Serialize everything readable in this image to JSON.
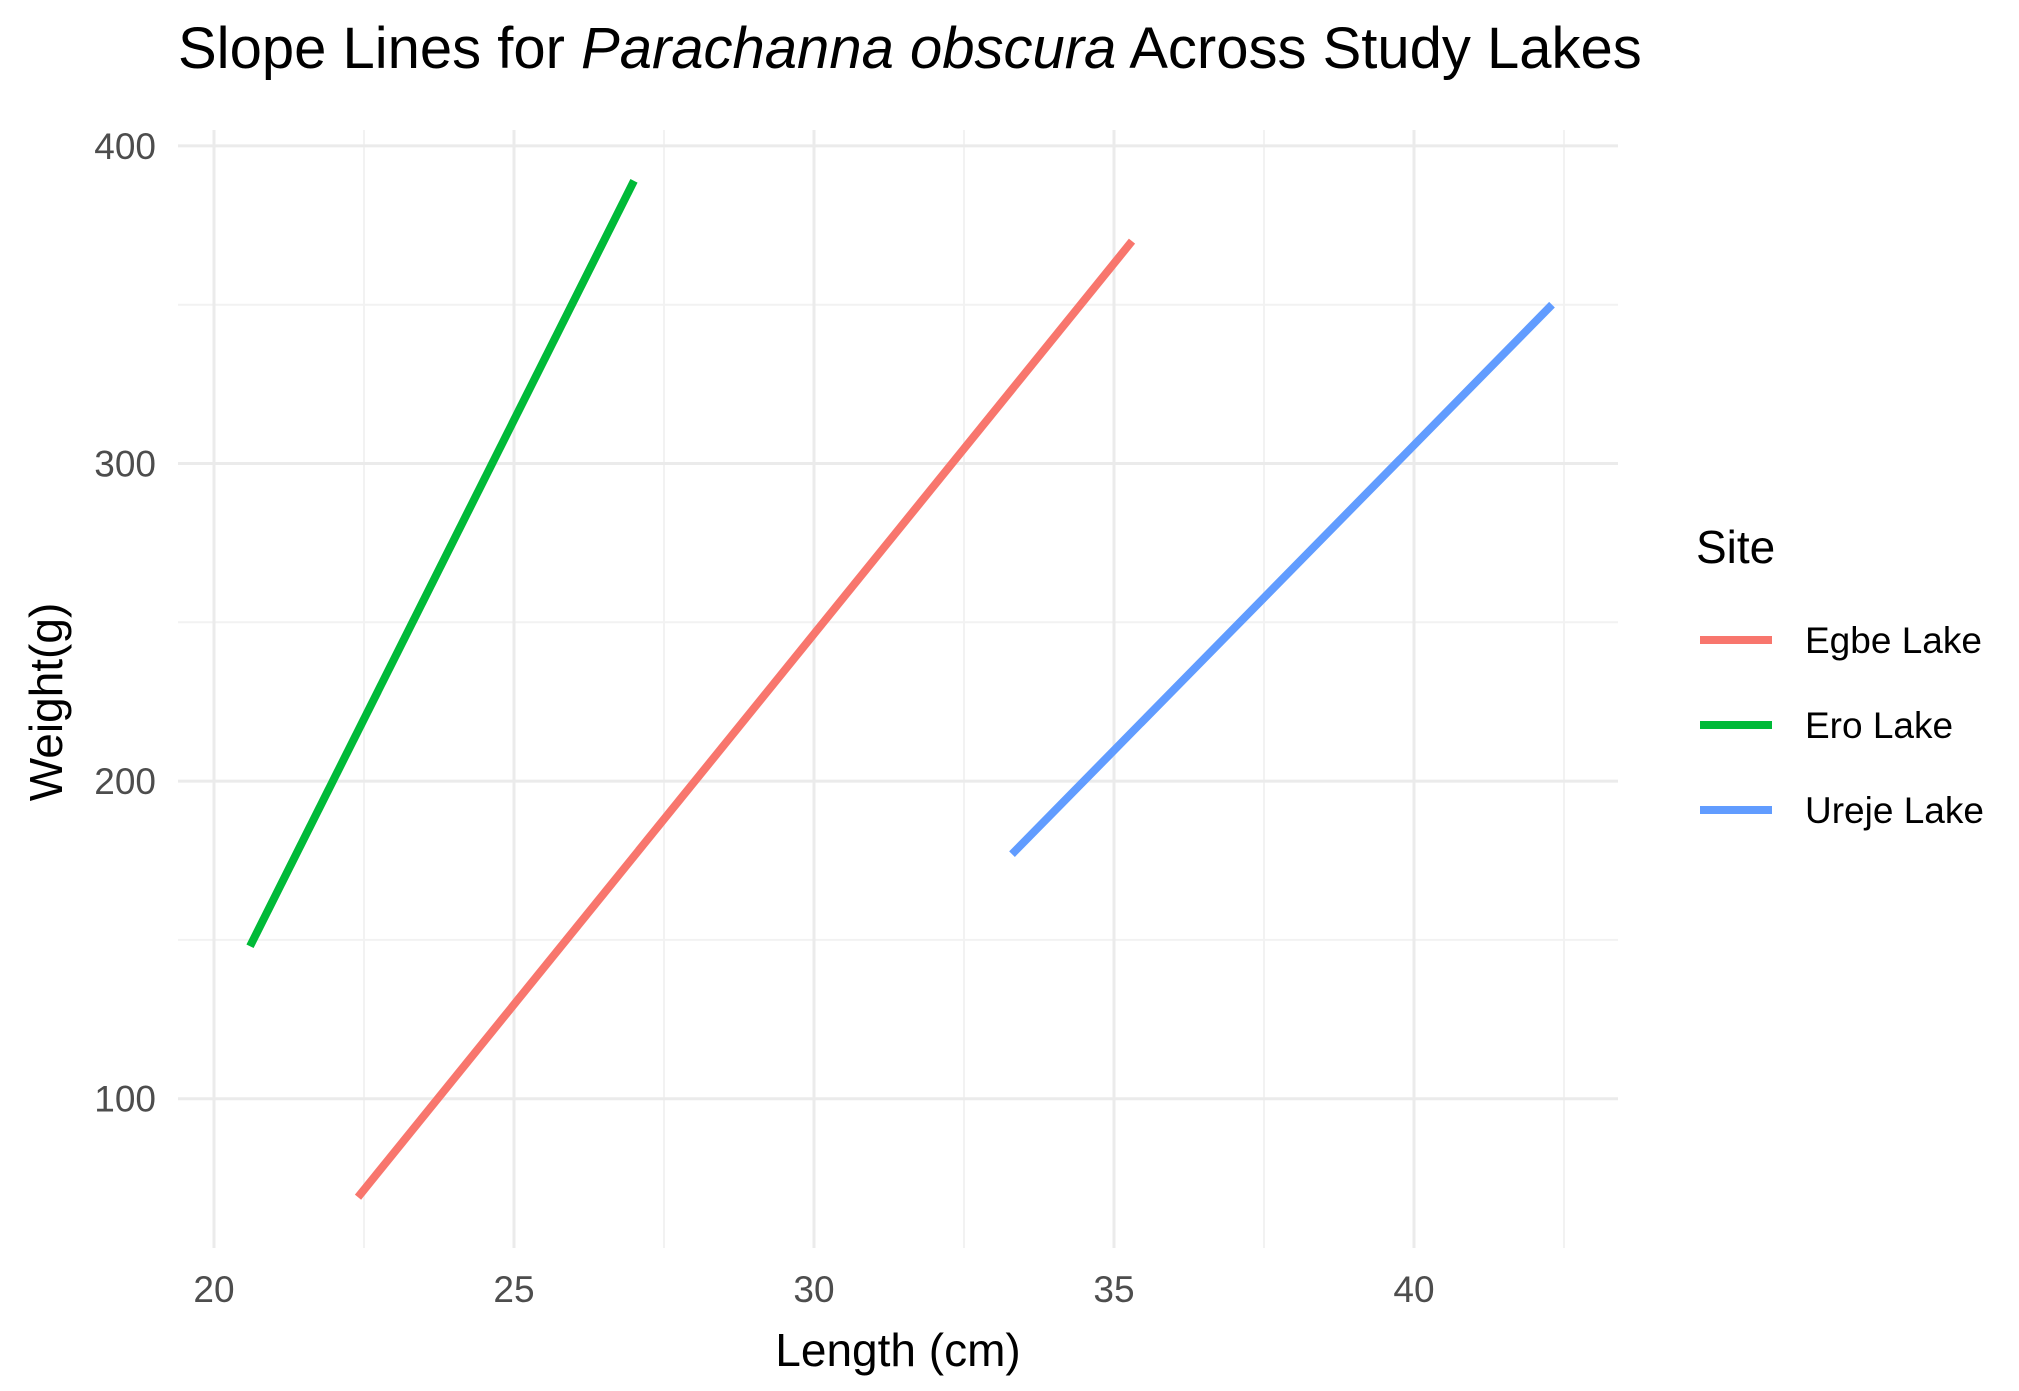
{
  "chart_data": {
    "type": "line",
    "title": {
      "prefix": "Slope Lines for ",
      "italic": "Parachanna obscura",
      "suffix": " Across Study Lakes"
    },
    "xlabel": "Length (cm)",
    "ylabel": "Weight(g)",
    "xlim": [
      19.4,
      43.4
    ],
    "ylim": [
      53,
      405
    ],
    "x_ticks": [
      20,
      25,
      30,
      35,
      40
    ],
    "x_tick_labels": [
      "20",
      "25",
      "30",
      "35",
      "40"
    ],
    "x_minor_ticks": [
      22.5,
      27.5,
      32.5,
      37.5,
      42.5
    ],
    "y_ticks": [
      100,
      200,
      300,
      400
    ],
    "y_tick_labels": [
      "100",
      "200",
      "300",
      "400"
    ],
    "y_minor_ticks": [
      150,
      250,
      350
    ],
    "grid": true,
    "legend": {
      "title": "Site",
      "position": "right"
    },
    "series": [
      {
        "name": "Egbe Lake",
        "color": "#F8766D",
        "x": [
          22.4,
          35.3
        ],
        "y": [
          69,
          370
        ]
      },
      {
        "name": "Ero Lake",
        "color": "#00BA38",
        "x": [
          20.6,
          27.0
        ],
        "y": [
          148,
          389
        ]
      },
      {
        "name": "Ureje Lake",
        "color": "#619CFF",
        "x": [
          33.3,
          42.3
        ],
        "y": [
          177,
          350
        ]
      }
    ]
  }
}
